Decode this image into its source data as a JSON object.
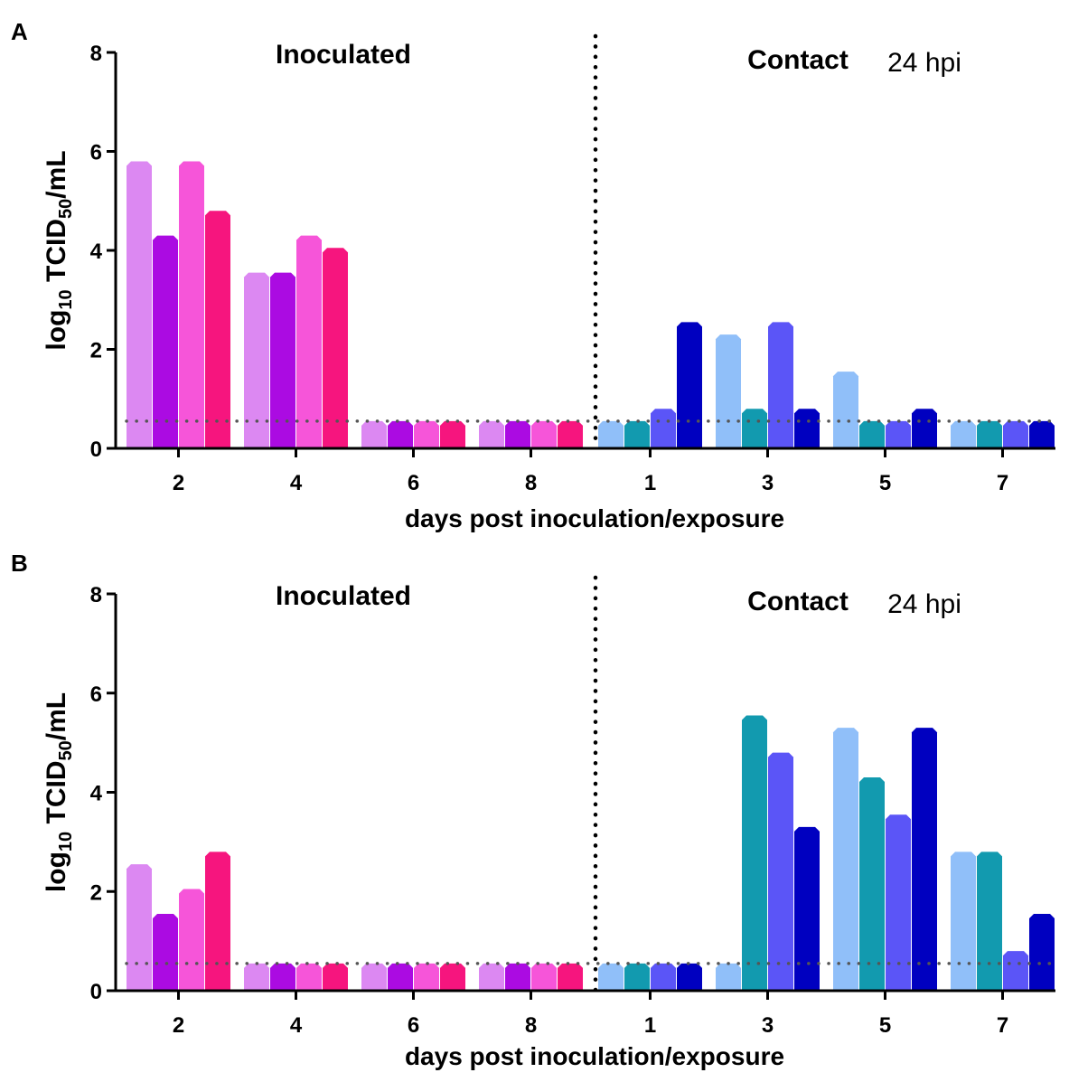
{
  "chart_data": [
    {
      "panel": "A",
      "type": "bar",
      "ylabel_main": "log",
      "ylabel_sub1": "10",
      "ylabel_mid": " TCID",
      "ylabel_sub2": "50",
      "ylabel_tail": "/mL",
      "xlabel": "days post inoculation/exposure",
      "ylim": [
        0,
        8
      ],
      "yticks": [
        "0",
        "2",
        "4",
        "6",
        "8"
      ],
      "limit_of_detection": 0.55,
      "inoculated_label": "Inoculated",
      "contact_label": "Contact",
      "contact_annotation": "24 hpi",
      "groups": [
        {
          "name": "inoculated",
          "categories": [
            "2",
            "4",
            "6",
            "8"
          ],
          "colors": [
            "#dc88f2",
            "#ab0be2",
            "#f655d9",
            "#f6157e"
          ],
          "series_values": [
            [
              5.8,
              4.3,
              5.8,
              4.8
            ],
            [
              3.55,
              3.55,
              4.3,
              4.05
            ],
            [
              0.55,
              0.55,
              0.55,
              0.55
            ],
            [
              0.55,
              0.55,
              0.55,
              0.55
            ]
          ]
        },
        {
          "name": "contact",
          "categories": [
            "1",
            "3",
            "5",
            "7"
          ],
          "colors": [
            "#90bff9",
            "#129aaf",
            "#5b55f7",
            "#0000c0"
          ],
          "series_values": [
            [
              0.55,
              0.55,
              0.8,
              2.55
            ],
            [
              2.3,
              0.8,
              2.55,
              0.8
            ],
            [
              1.55,
              0.55,
              0.55,
              0.8
            ],
            [
              0.55,
              0.55,
              0.55,
              0.55
            ]
          ]
        }
      ]
    },
    {
      "panel": "B",
      "type": "bar",
      "ylabel_main": "log",
      "ylabel_sub1": "10",
      "ylabel_mid": " TCID",
      "ylabel_sub2": "50",
      "ylabel_tail": "/mL",
      "xlabel": "days post inoculation/exposure",
      "ylim": [
        0,
        8
      ],
      "yticks": [
        "0",
        "2",
        "4",
        "6",
        "8"
      ],
      "limit_of_detection": 0.55,
      "inoculated_label": "Inoculated",
      "contact_label": "Contact",
      "contact_annotation": "24 hpi",
      "groups": [
        {
          "name": "inoculated",
          "categories": [
            "2",
            "4",
            "6",
            "8"
          ],
          "colors": [
            "#dc88f2",
            "#ab0be2",
            "#f655d9",
            "#f6157e"
          ],
          "series_values": [
            [
              2.55,
              1.55,
              2.05,
              2.8
            ],
            [
              0.55,
              0.55,
              0.55,
              0.55
            ],
            [
              0.55,
              0.55,
              0.55,
              0.55
            ],
            [
              0.55,
              0.55,
              0.55,
              0.55
            ]
          ]
        },
        {
          "name": "contact",
          "categories": [
            "1",
            "3",
            "5",
            "7"
          ],
          "colors": [
            "#90bff9",
            "#129aaf",
            "#5b55f7",
            "#0000c0"
          ],
          "series_values": [
            [
              0.55,
              0.55,
              0.55,
              0.55
            ],
            [
              0.55,
              5.55,
              4.8,
              3.3
            ],
            [
              5.3,
              4.3,
              3.55,
              5.3
            ],
            [
              2.8,
              2.8,
              0.8,
              1.55
            ]
          ]
        }
      ]
    }
  ]
}
